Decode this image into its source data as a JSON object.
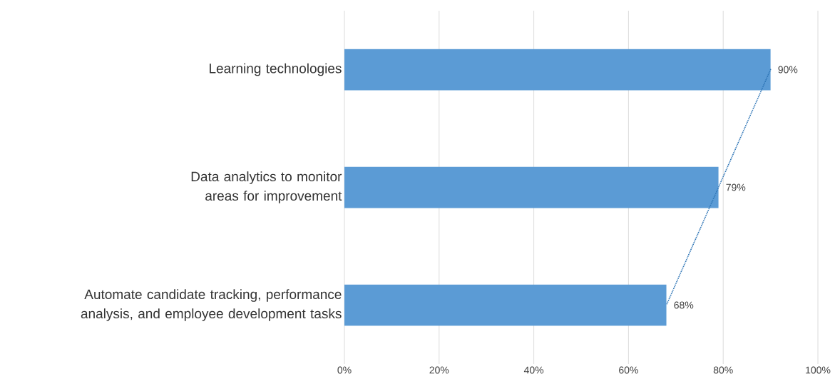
{
  "chart_data": {
    "type": "bar",
    "orientation": "horizontal",
    "categories": [
      "Learning technologies",
      "Data analytics to monitor areas for improvement",
      "Automate candidate tracking, performance analysis, and employee development tasks"
    ],
    "series": [
      {
        "color": "#5b9bd5",
        "values": [
          90,
          79,
          68
        ],
        "value_labels": [
          "90%",
          "79%",
          "68%"
        ]
      },
      {
        "type": "line",
        "color": "#2e75b6",
        "line_style": "dotted",
        "values": [
          90,
          79,
          68
        ]
      }
    ],
    "xlim": [
      0,
      100
    ],
    "xticks": [
      {
        "value": 0,
        "label": "0%"
      },
      {
        "value": 20,
        "label": "20%"
      },
      {
        "value": 40,
        "label": "40%"
      },
      {
        "value": 60,
        "label": "60%"
      },
      {
        "value": 80,
        "label": "80%"
      },
      {
        "value": 100,
        "label": "100%"
      }
    ],
    "grid": "x"
  }
}
